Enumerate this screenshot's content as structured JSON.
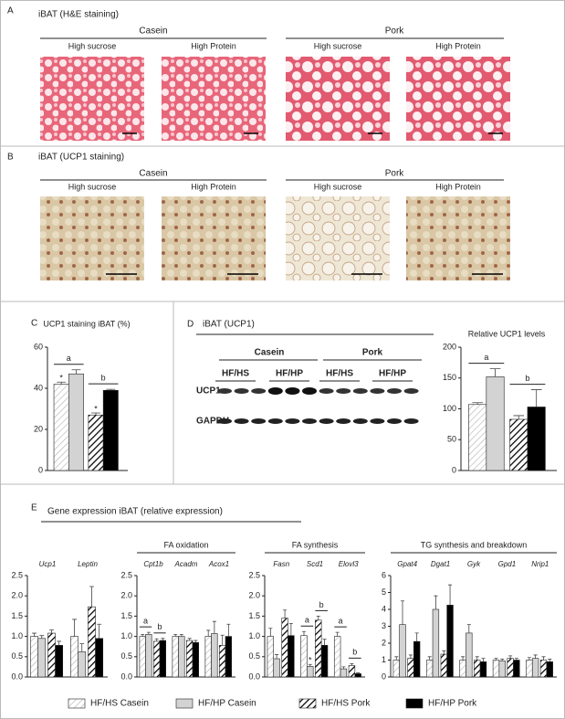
{
  "panel_a": {
    "label": "A",
    "title": "iBAT (H&E staining)",
    "groups": [
      "Casein",
      "Pork"
    ],
    "images": [
      "High sucrose",
      "High Protein",
      "High sucrose",
      "High Protein"
    ]
  },
  "panel_b": {
    "label": "B",
    "title": "iBAT (UCP1 staining)",
    "groups": [
      "Casein",
      "Pork"
    ],
    "images": [
      "High sucrose",
      "High Protein",
      "High sucrose",
      "High Protein"
    ]
  },
  "panel_c": {
    "label": "C"
  },
  "panel_d": {
    "label": "D",
    "title": "iBAT (UCP1)",
    "blot": {
      "groups": [
        "Casein",
        "Pork"
      ],
      "lanes": [
        "HF/HS",
        "HF/HP",
        "HF/HS",
        "HF/HP"
      ],
      "rows": [
        "UCP1",
        "GAPDH"
      ]
    }
  },
  "panel_e": {
    "label": "E",
    "title": "Gene expression iBAT (relative expression)"
  },
  "chart_data": [
    {
      "type": "bar",
      "title": "UCP1 staining iBAT (%)",
      "categories": [
        null
      ],
      "series": [
        {
          "name": "HF/HS Casein",
          "color": "#b0b0b0",
          "hatched": true,
          "values": [
            42
          ],
          "errors": [
            1
          ]
        },
        {
          "name": "HF/HP Casein",
          "color": "#d3d3d3",
          "hatched": false,
          "values": [
            47
          ],
          "errors": [
            2
          ]
        },
        {
          "name": "HF/HS Pork",
          "color": "#000000",
          "hatched": true,
          "values": [
            27
          ],
          "errors": [
            1
          ]
        },
        {
          "name": "HF/HP Pork",
          "color": "#000000",
          "hatched": false,
          "values": [
            39
          ],
          "errors": [
            0.5
          ]
        }
      ],
      "ylim": [
        0,
        60
      ],
      "yticks": [
        0,
        20,
        40,
        60
      ],
      "annotations": [
        {
          "text": "a",
          "category": 0,
          "bars": [
            0,
            1
          ]
        },
        {
          "text": "b",
          "category": 0,
          "bars": [
            2,
            3
          ]
        },
        {
          "text": "*",
          "category": 0,
          "bars": [
            0
          ]
        },
        {
          "text": "*",
          "category": 0,
          "bars": [
            2
          ]
        }
      ]
    },
    {
      "type": "bar",
      "title": "Relative UCP1 levels",
      "categories": [
        null
      ],
      "series": [
        {
          "values": [
            107
          ],
          "errors": [
            3
          ]
        },
        {
          "values": [
            152
          ],
          "errors": [
            13
          ]
        },
        {
          "values": [
            83
          ],
          "errors": [
            6
          ]
        },
        {
          "values": [
            103
          ],
          "errors": [
            28
          ]
        }
      ],
      "ylim": [
        0,
        200
      ],
      "yticks": [
        0,
        50,
        100,
        150,
        200
      ],
      "annotations": [
        {
          "text": "a",
          "category": 0,
          "bars": [
            0,
            1
          ]
        },
        {
          "text": "b",
          "category": 0,
          "bars": [
            2,
            3
          ]
        }
      ]
    },
    {
      "type": "bar",
      "categories": [
        "Ucp1",
        "Leptin"
      ],
      "series": [
        {
          "values": [
            1.0,
            1.0
          ],
          "errors": [
            0.08,
            0.42
          ]
        },
        {
          "values": [
            0.95,
            0.62
          ],
          "errors": [
            0.07,
            0.2
          ]
        },
        {
          "values": [
            1.08,
            1.73
          ],
          "errors": [
            0.08,
            0.5
          ]
        },
        {
          "values": [
            0.78,
            0.95
          ],
          "errors": [
            0.1,
            0.35
          ]
        }
      ],
      "ylim": [
        0,
        2.5
      ],
      "yticks": [
        {
          "value": 0,
          "label": "0.0"
        },
        {
          "value": 0.5,
          "label": "0.5"
        },
        {
          "value": 1,
          "label": "1.0"
        },
        {
          "value": 1.5,
          "label": "1.5"
        },
        {
          "value": 2,
          "label": "2.0"
        },
        {
          "value": 2.5,
          "label": "2.5"
        }
      ]
    },
    {
      "type": "bar",
      "title": "FA oxidation",
      "categories": [
        "Cpt1b",
        "Acadm",
        "Acox1"
      ],
      "series": [
        {
          "values": [
            1.0,
            1.0,
            1.0
          ],
          "errors": [
            0.05,
            0.05,
            0.15
          ]
        },
        {
          "values": [
            1.05,
            1.0,
            1.07
          ],
          "errors": [
            0.05,
            0.05,
            0.3
          ]
        },
        {
          "values": [
            0.88,
            0.9,
            0.78
          ],
          "errors": [
            0.06,
            0.05,
            0.25
          ]
        },
        {
          "values": [
            0.9,
            0.85,
            1.0
          ],
          "errors": [
            0.05,
            0.05,
            0.3
          ]
        }
      ],
      "ylim": [
        0,
        2.5
      ],
      "yticks": [
        {
          "value": 0,
          "label": "0.0"
        },
        {
          "value": 0.5,
          "label": "0.5"
        },
        {
          "value": 1,
          "label": "1.0"
        },
        {
          "value": 1.5,
          "label": "1.5"
        },
        {
          "value": 2,
          "label": "2.0"
        },
        {
          "value": 2.5,
          "label": "2.5"
        }
      ],
      "annotations": [
        {
          "text": "a",
          "category": 0,
          "bars": [
            0,
            1
          ]
        },
        {
          "text": "b",
          "category": 0,
          "bars": [
            2,
            3
          ]
        }
      ]
    },
    {
      "type": "bar",
      "title": "FA synthesis",
      "categories": [
        "Fasn",
        "Scd1",
        "Elovl3"
      ],
      "series": [
        {
          "values": [
            1.0,
            1.02,
            1.0
          ],
          "errors": [
            0.2,
            0.1,
            0.1
          ]
        },
        {
          "values": [
            0.45,
            0.26,
            0.2
          ],
          "errors": [
            0.1,
            0.05,
            0.05
          ]
        },
        {
          "values": [
            1.45,
            1.4,
            0.28
          ],
          "errors": [
            0.2,
            0.1,
            0.05
          ]
        },
        {
          "values": [
            1.02,
            0.78,
            0.08
          ],
          "errors": [
            0.3,
            0.15,
            0.02
          ]
        }
      ],
      "ylim": [
        0,
        2.5
      ],
      "yticks": [
        {
          "value": 0,
          "label": "0.0"
        },
        {
          "value": 0.5,
          "label": "0.5"
        },
        {
          "value": 1,
          "label": "1.0"
        },
        {
          "value": 1.5,
          "label": "1.5"
        },
        {
          "value": 2,
          "label": "2.0"
        },
        {
          "value": 2.5,
          "label": "2.5"
        }
      ],
      "annotations": [
        {
          "text": "a",
          "category": 1,
          "bars": [
            0,
            1
          ]
        },
        {
          "text": "b",
          "category": 1,
          "bars": [
            2,
            3
          ]
        },
        {
          "text": "*",
          "category": 1,
          "bars": [
            1
          ]
        },
        {
          "text": "a",
          "category": 2,
          "bars": [
            0,
            1
          ]
        },
        {
          "text": "b",
          "category": 2,
          "bars": [
            2,
            3
          ]
        }
      ]
    },
    {
      "type": "bar",
      "title": "TG synthesis and breakdown",
      "categories": [
        "Gpat4",
        "Dgat1",
        "Gyk",
        "Gpd1",
        "Nrip1"
      ],
      "series": [
        {
          "values": [
            1.0,
            1.0,
            1.0,
            1.0,
            1.0
          ],
          "errors": [
            0.2,
            0.2,
            0.2,
            0.1,
            0.15
          ]
        },
        {
          "values": [
            3.1,
            4.0,
            2.6,
            0.95,
            1.1
          ],
          "errors": [
            1.4,
            0.8,
            0.5,
            0.1,
            0.2
          ]
        },
        {
          "values": [
            1.1,
            1.35,
            1.0,
            1.1,
            1.0
          ],
          "errors": [
            0.2,
            0.2,
            0.2,
            0.15,
            0.2
          ]
        },
        {
          "values": [
            2.1,
            4.25,
            0.9,
            1.0,
            0.9
          ],
          "errors": [
            0.5,
            1.2,
            0.2,
            0.1,
            0.15
          ]
        }
      ],
      "ylim": [
        0,
        6
      ],
      "yticks": [
        0,
        1,
        2,
        3,
        4,
        5,
        6
      ]
    }
  ]
}
